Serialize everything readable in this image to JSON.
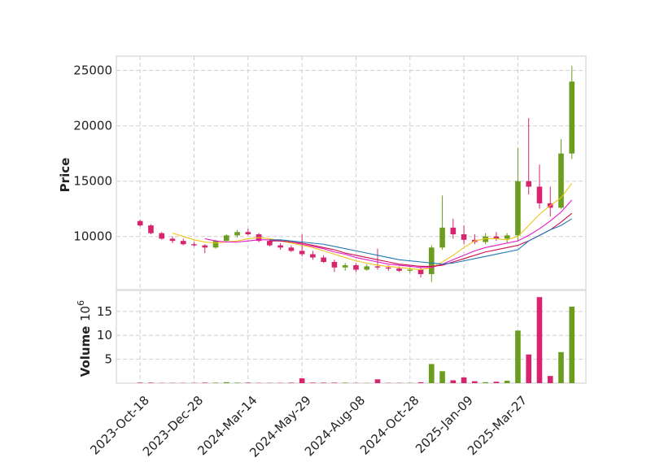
{
  "chart_data": {
    "type": "candlestick",
    "ylabel": "Price",
    "volume_label": "Volume",
    "volume_offset": {
      "base": "10",
      "exponent": "6"
    },
    "xlim": [
      -2.2,
      41.3
    ],
    "xticks": [
      {
        "value": 0,
        "label": "2023-Oct-18"
      },
      {
        "value": 5,
        "label": "2023-Dec-28"
      },
      {
        "value": 10,
        "label": "2024-Mar-14"
      },
      {
        "value": 15,
        "label": "2024-May-29"
      },
      {
        "value": 20,
        "label": "2024-Aug-08"
      },
      {
        "value": 25,
        "label": "2024-Oct-28"
      },
      {
        "value": 30,
        "label": "2025-Jan-09"
      },
      {
        "value": 35,
        "label": "2025-Mar-27"
      }
    ],
    "ylim": [
      5200,
      26300
    ],
    "yticks": [
      10000,
      15000,
      20000,
      25000
    ],
    "volume_ylim": [
      0,
      19.4
    ],
    "volume_yticks": [
      5,
      10,
      15
    ],
    "grid": true,
    "up_color": "#6b9e1f",
    "down_color": "#d6246e",
    "open": [
      11400,
      11000,
      10300,
      9800,
      9600,
      9300,
      9200,
      9000,
      9600,
      10100,
      10400,
      10200,
      9600,
      9200,
      9000,
      8700,
      8400,
      8100,
      7700,
      7200,
      7400,
      7000,
      7300,
      7200,
      7100,
      6900,
      7000,
      6600,
      9000,
      10800,
      10200,
      9700,
      9500,
      10000,
      9800,
      10100,
      15000,
      14500,
      13000,
      12600,
      17500
    ],
    "high": [
      11500,
      11100,
      10400,
      10000,
      9800,
      9500,
      9300,
      9700,
      10200,
      10600,
      10700,
      10300,
      9700,
      9400,
      9200,
      10200,
      8700,
      8300,
      7900,
      7600,
      7600,
      7500,
      8900,
      7400,
      7300,
      7200,
      7200,
      9200,
      13700,
      11600,
      11000,
      10200,
      10300,
      10400,
      10300,
      18000,
      20700,
      16500,
      14500,
      18800,
      25400
    ],
    "low": [
      10900,
      10200,
      9700,
      9400,
      9200,
      9100,
      8500,
      8900,
      9500,
      9900,
      10100,
      9500,
      9100,
      8800,
      8600,
      8200,
      7900,
      7600,
      6800,
      6900,
      6800,
      6900,
      7000,
      6900,
      6800,
      6700,
      6300,
      5900,
      8800,
      9800,
      9300,
      9300,
      9300,
      9600,
      9400,
      9600,
      13800,
      12500,
      11800,
      12500,
      17000
    ],
    "close": [
      11000,
      10300,
      9800,
      9600,
      9300,
      9200,
      9000,
      9600,
      10100,
      10400,
      10200,
      9600,
      9200,
      9000,
      8700,
      8400,
      8100,
      7700,
      7200,
      7400,
      7000,
      7300,
      7200,
      7100,
      6900,
      7000,
      6600,
      9000,
      10800,
      10200,
      9700,
      9500,
      10000,
      9800,
      10100,
      15000,
      14500,
      13000,
      12600,
      17500,
      24000
    ],
    "volume": [
      0.1,
      0.1,
      0.05,
      0.05,
      0.05,
      0.05,
      0.1,
      0.1,
      0.2,
      0.1,
      0.1,
      0.05,
      0.05,
      0.05,
      0.1,
      1.0,
      0.1,
      0.1,
      0.1,
      0.1,
      0.05,
      0.05,
      0.8,
      0.05,
      0.05,
      0.05,
      0.2,
      4.0,
      2.5,
      0.6,
      1.2,
      0.4,
      0.2,
      0.3,
      0.5,
      11.0,
      6.0,
      18.0,
      1.5,
      6.5,
      16.0
    ],
    "series": [
      {
        "color": "#f0c419",
        "values": [
          null,
          null,
          null,
          10300,
          10000,
          9700,
          9500,
          9400,
          9500,
          9600,
          9800,
          9900,
          9800,
          9600,
          9400,
          9200,
          9000,
          8700,
          8400,
          8100,
          7800,
          7600,
          7400,
          7300,
          7200,
          7100,
          7000,
          7200,
          7700,
          8300,
          9000,
          9600,
          9800,
          9800,
          9700,
          10000,
          11000,
          12000,
          12800,
          13500,
          14800
        ]
      },
      {
        "color": "#e619c8",
        "values": [
          null,
          null,
          null,
          null,
          null,
          null,
          9800,
          9600,
          9500,
          9500,
          9600,
          9700,
          9700,
          9600,
          9500,
          9300,
          9100,
          8900,
          8600,
          8400,
          8100,
          7900,
          7700,
          7500,
          7400,
          7300,
          7200,
          7200,
          7500,
          7900,
          8300,
          8700,
          9000,
          9200,
          9400,
          9600,
          10100,
          10700,
          11400,
          12200,
          13300
        ]
      },
      {
        "color": "#c8104a",
        "values": [
          null,
          null,
          null,
          null,
          null,
          null,
          null,
          null,
          null,
          null,
          null,
          null,
          9600,
          9600,
          9500,
          9400,
          9200,
          9000,
          8800,
          8500,
          8300,
          8100,
          7900,
          7700,
          7500,
          7400,
          7300,
          7300,
          7400,
          7700,
          8000,
          8300,
          8600,
          8800,
          9000,
          9200,
          9600,
          10100,
          10600,
          11300,
          12100
        ]
      },
      {
        "color": "#1f77b4",
        "values": [
          null,
          null,
          null,
          null,
          null,
          null,
          null,
          null,
          null,
          null,
          null,
          null,
          9700,
          9700,
          9600,
          9500,
          9400,
          9300,
          9100,
          8900,
          8700,
          8500,
          8300,
          8100,
          7900,
          7800,
          7700,
          7600,
          7500,
          7600,
          7800,
          8000,
          8200,
          8400,
          8600,
          8800,
          9600,
          10100,
          10600,
          11000,
          11600
        ]
      }
    ]
  }
}
